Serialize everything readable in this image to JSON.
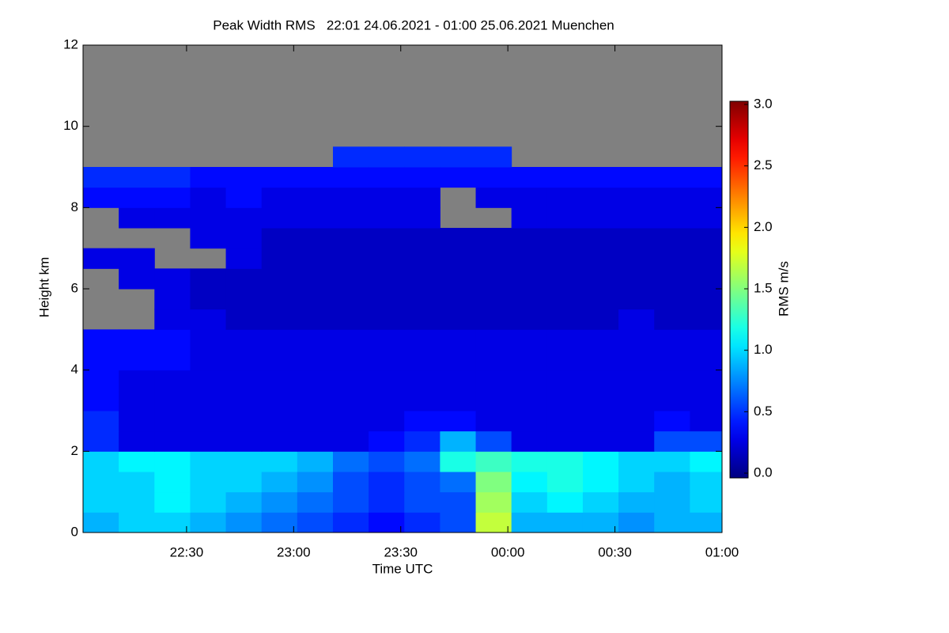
{
  "chart_data": {
    "type": "heatmap",
    "title": "Peak Width RMS   22:01 24.06.2021 - 01:00 25.06.2021 Muenchen",
    "xlabel": "Time UTC",
    "ylabel": "Height km",
    "colorbar_label": "RMS m/s",
    "colormap": "jet",
    "missing_color": "#808080",
    "xlim": [
      1,
      180
    ],
    "ylim": [
      0,
      12
    ],
    "clim": [
      0,
      3
    ],
    "xticks": [
      {
        "value": 30,
        "label": "22:30"
      },
      {
        "value": 60,
        "label": "23:00"
      },
      {
        "value": 90,
        "label": "23:30"
      },
      {
        "value": 120,
        "label": "00:00"
      },
      {
        "value": 150,
        "label": "00:30"
      },
      {
        "value": 180,
        "label": "01:00"
      }
    ],
    "yticks": [
      0,
      2,
      4,
      6,
      8,
      10,
      12
    ],
    "cticks": [
      {
        "value": 0,
        "label": "0.0"
      },
      {
        "value": 0.5,
        "label": "0.5"
      },
      {
        "value": 1,
        "label": "1.0"
      },
      {
        "value": 1.5,
        "label": "1.5"
      },
      {
        "value": 2,
        "label": "2.0"
      },
      {
        "value": 2.5,
        "label": "2.5"
      },
      {
        "value": 3,
        "label": "3.0"
      }
    ],
    "x": [
      6,
      16,
      26,
      36,
      46,
      56,
      66,
      76,
      86,
      96,
      106,
      116,
      126,
      136,
      146,
      156,
      166,
      176
    ],
    "y": [
      0.25,
      0.75,
      1.25,
      1.75,
      2.25,
      2.75,
      3.25,
      3.75,
      4.25,
      4.75,
      5.25,
      5.75,
      6.25,
      6.75,
      7.25,
      7.75,
      8.25,
      8.75,
      9.25
    ],
    "z": [
      [
        0.9,
        1.0,
        1.0,
        0.9,
        0.8,
        0.7,
        0.6,
        0.5,
        0.4,
        0.5,
        0.6,
        1.7,
        0.9,
        0.9,
        0.9,
        0.8,
        0.9,
        0.9
      ],
      [
        1.0,
        1.0,
        1.1,
        1.0,
        0.9,
        0.8,
        0.7,
        0.6,
        0.5,
        0.6,
        0.6,
        1.6,
        1.0,
        1.1,
        1.0,
        0.9,
        0.9,
        1.0
      ],
      [
        1.0,
        1.0,
        1.1,
        1.0,
        1.0,
        0.9,
        0.8,
        0.6,
        0.5,
        0.6,
        0.7,
        1.5,
        1.1,
        1.2,
        1.1,
        1.0,
        0.9,
        1.0
      ],
      [
        1.0,
        1.1,
        1.1,
        1.0,
        1.0,
        1.0,
        0.9,
        0.7,
        0.6,
        0.7,
        1.2,
        1.3,
        1.2,
        1.2,
        1.1,
        1.0,
        1.0,
        1.1
      ],
      [
        0.5,
        0.3,
        0.3,
        0.3,
        0.3,
        0.3,
        0.3,
        0.3,
        0.4,
        0.5,
        0.9,
        0.6,
        0.3,
        0.3,
        0.3,
        0.3,
        0.6,
        0.6
      ],
      [
        0.5,
        0.3,
        0.3,
        0.3,
        0.3,
        0.3,
        0.3,
        0.3,
        0.3,
        0.4,
        0.4,
        0.3,
        0.3,
        0.3,
        0.3,
        0.3,
        0.4,
        0.3
      ],
      [
        0.4,
        0.3,
        0.3,
        0.3,
        0.3,
        0.3,
        0.3,
        0.3,
        0.3,
        0.3,
        0.3,
        0.3,
        0.3,
        0.3,
        0.3,
        0.3,
        0.3,
        0.3
      ],
      [
        0.4,
        0.3,
        0.3,
        0.3,
        0.3,
        0.3,
        0.3,
        0.3,
        0.3,
        0.3,
        0.3,
        0.3,
        0.3,
        0.3,
        0.3,
        0.3,
        0.3,
        0.3
      ],
      [
        0.4,
        0.4,
        0.4,
        0.3,
        0.3,
        0.3,
        0.3,
        0.3,
        0.3,
        0.3,
        0.3,
        0.3,
        0.3,
        0.3,
        0.3,
        0.3,
        0.3,
        0.3
      ],
      [
        0.4,
        0.4,
        0.4,
        0.3,
        0.3,
        0.3,
        0.3,
        0.3,
        0.3,
        0.3,
        0.3,
        0.3,
        0.3,
        0.3,
        0.3,
        0.3,
        0.3,
        0.3
      ],
      [
        null,
        null,
        0.3,
        0.3,
        0.2,
        0.2,
        0.2,
        0.2,
        0.2,
        0.2,
        0.2,
        0.2,
        0.2,
        0.2,
        0.2,
        0.3,
        0.2,
        0.2
      ],
      [
        null,
        null,
        0.3,
        0.2,
        0.2,
        0.2,
        0.2,
        0.2,
        0.2,
        0.2,
        0.2,
        0.2,
        0.2,
        0.2,
        0.2,
        0.2,
        0.2,
        0.2
      ],
      [
        null,
        0.3,
        0.3,
        0.2,
        0.2,
        0.2,
        0.2,
        0.2,
        0.2,
        0.2,
        0.2,
        0.2,
        0.2,
        0.2,
        0.2,
        0.2,
        0.2,
        0.2
      ],
      [
        0.3,
        0.3,
        null,
        null,
        0.3,
        0.2,
        0.2,
        0.2,
        0.2,
        0.2,
        0.2,
        0.2,
        0.2,
        0.2,
        0.2,
        0.2,
        0.2,
        0.2
      ],
      [
        null,
        null,
        null,
        0.3,
        0.3,
        0.2,
        0.2,
        0.2,
        0.2,
        0.2,
        0.2,
        0.2,
        0.2,
        0.2,
        0.2,
        0.2,
        0.2,
        0.2
      ],
      [
        null,
        0.3,
        0.3,
        0.3,
        0.3,
        0.3,
        0.3,
        0.3,
        0.3,
        0.3,
        null,
        null,
        0.3,
        0.3,
        0.3,
        0.3,
        0.3,
        0.3
      ],
      [
        0.4,
        0.4,
        0.4,
        0.3,
        0.4,
        0.3,
        0.3,
        0.3,
        0.3,
        0.3,
        null,
        0.3,
        0.3,
        0.3,
        0.3,
        0.3,
        0.3,
        0.3
      ],
      [
        0.5,
        0.5,
        0.5,
        0.4,
        0.4,
        0.4,
        0.4,
        0.4,
        0.4,
        0.4,
        0.4,
        0.4,
        0.4,
        0.4,
        0.4,
        0.4,
        0.4,
        0.4
      ],
      [
        null,
        null,
        null,
        null,
        null,
        null,
        null,
        0.5,
        0.5,
        0.5,
        0.5,
        0.5,
        null,
        null,
        null,
        null,
        null,
        null
      ]
    ]
  }
}
